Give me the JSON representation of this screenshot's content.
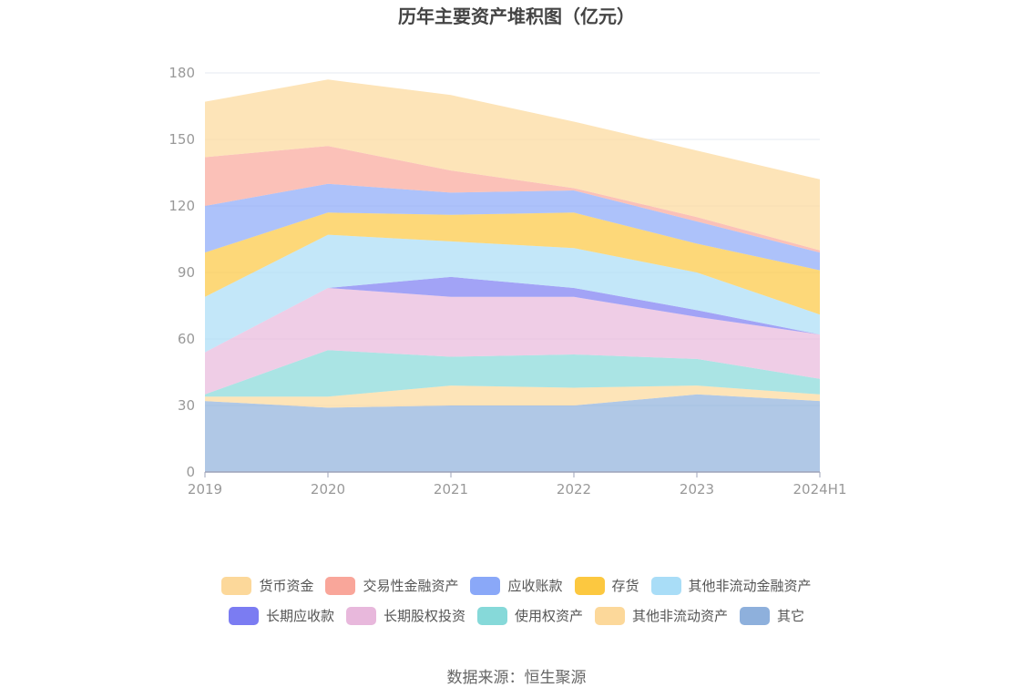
{
  "chart_data": {
    "type": "area",
    "stacked": true,
    "title": "历年主要资产堆积图（亿元）",
    "source": "数据来源：恒生聚源",
    "categories": [
      "2019",
      "2020",
      "2021",
      "2022",
      "2023",
      "2024H1"
    ],
    "ylim": [
      0,
      180
    ],
    "yticks": [
      0,
      30,
      60,
      90,
      120,
      150,
      180
    ],
    "grid": true,
    "legend_position": "bottom",
    "series": [
      {
        "name": "其它",
        "color": "#8eb0dc",
        "values": [
          32,
          29,
          30,
          30,
          35,
          32
        ]
      },
      {
        "name": "其他非流动资产",
        "color": "#fcd89a",
        "values": [
          2,
          5,
          9,
          8,
          4,
          3
        ]
      },
      {
        "name": "使用权资产",
        "color": "#86d9d9",
        "values": [
          1,
          21,
          13,
          15,
          12,
          7
        ]
      },
      {
        "name": "长期股权投资",
        "color": "#e8b8dc",
        "values": [
          19,
          28,
          27,
          26,
          19,
          20
        ]
      },
      {
        "name": "长期应收款",
        "color": "#7b7cf2",
        "values": [
          0,
          0,
          9,
          4,
          3,
          0
        ]
      },
      {
        "name": "其他非流动金融资产",
        "color": "#a9ddf7",
        "values": [
          25,
          24,
          16,
          18,
          17,
          9
        ]
      },
      {
        "name": "存货",
        "color": "#fcc840",
        "values": [
          20,
          10,
          12,
          16,
          13,
          20
        ]
      },
      {
        "name": "应收账款",
        "color": "#8aa8f8",
        "values": [
          21,
          13,
          10,
          10,
          10,
          8
        ]
      },
      {
        "name": "交易性金融资产",
        "color": "#f9a69a",
        "values": [
          22,
          17,
          10,
          1,
          2,
          1
        ]
      },
      {
        "name": "货币资金",
        "color": "#fcd89a",
        "values": [
          25,
          30,
          34,
          30,
          30,
          32
        ]
      }
    ],
    "legend_order": [
      "货币资金",
      "交易性金融资产",
      "应收账款",
      "存货",
      "其他非流动金融资产",
      "长期应收款",
      "长期股权投资",
      "使用权资产",
      "其他非流动资产",
      "其它"
    ]
  }
}
